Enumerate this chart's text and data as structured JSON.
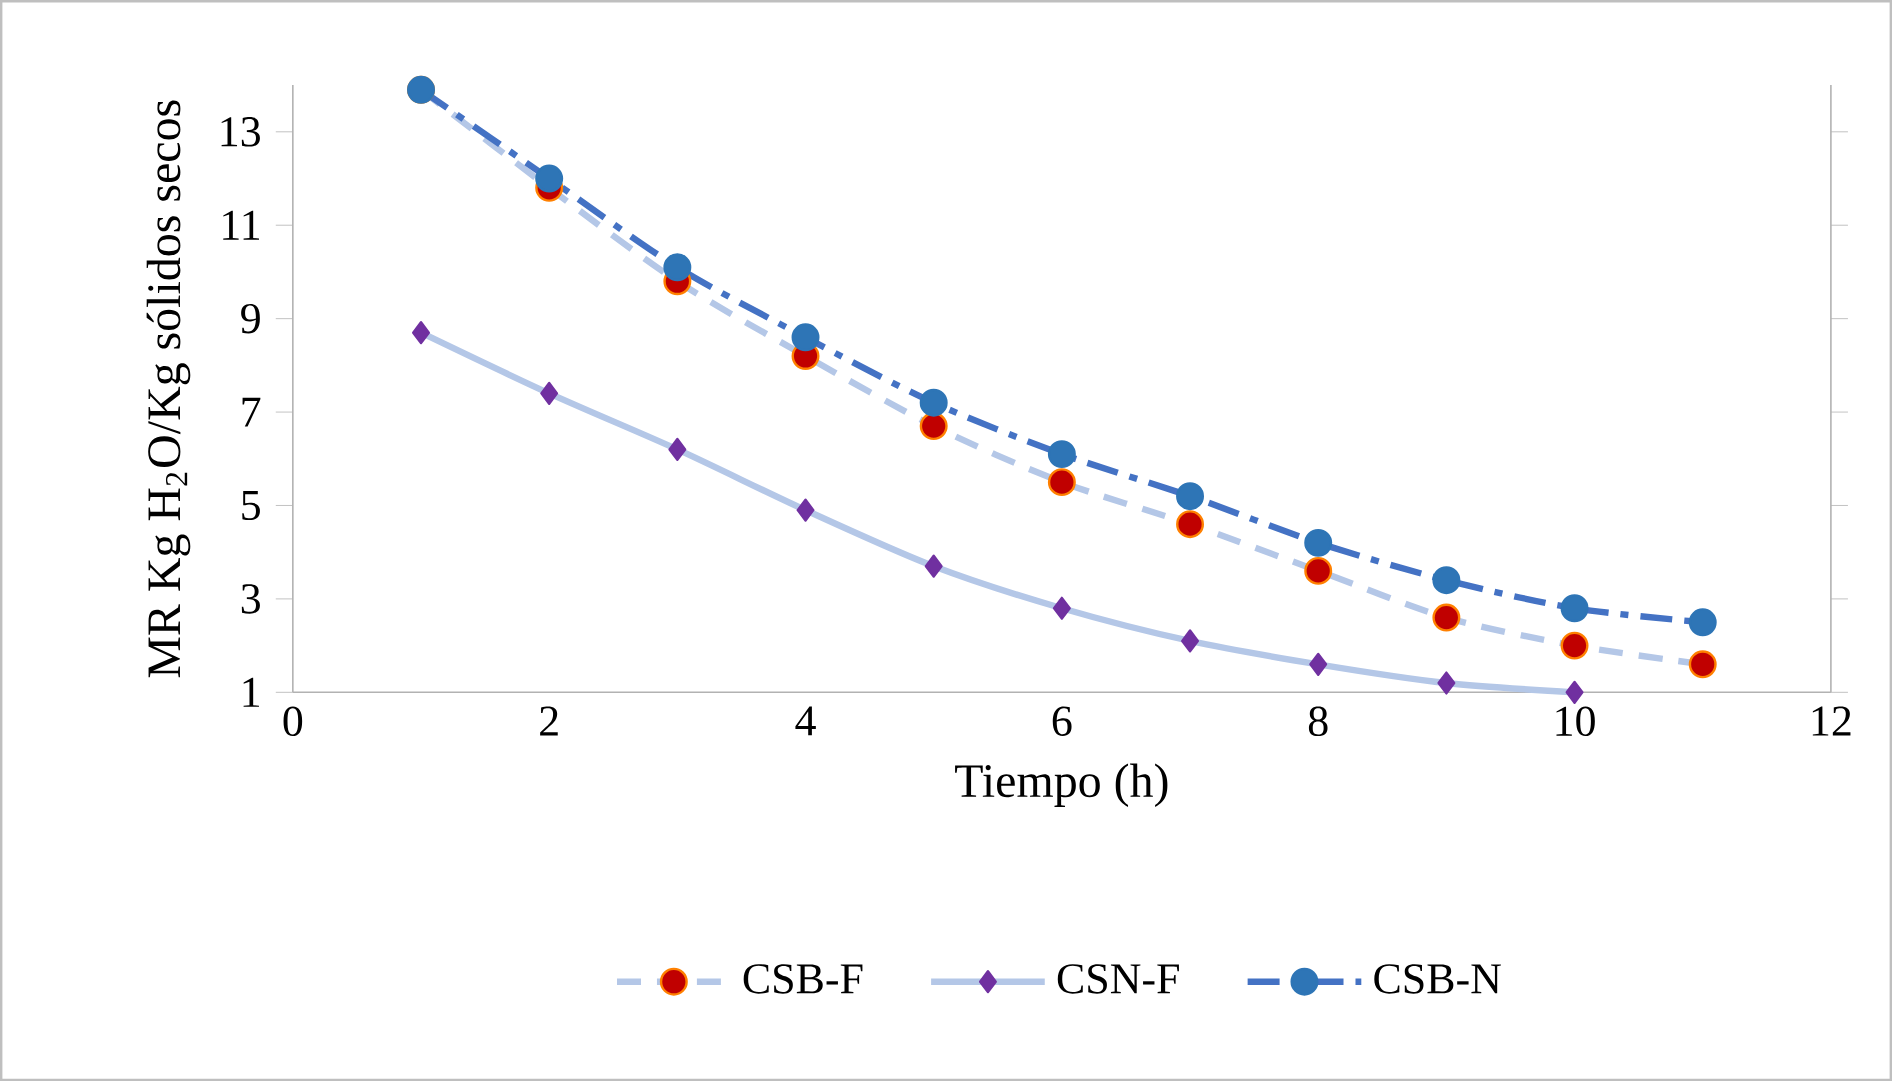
{
  "chart_data": {
    "type": "line",
    "xlabel": "Tiempo (h)",
    "ylabel": "MR Kg H$_{2}$O/Kg sólidos secos",
    "xlim": [
      0,
      12
    ],
    "xticks": [
      0,
      2,
      4,
      6,
      8,
      10,
      12
    ],
    "ylim": [
      1,
      14
    ],
    "yticks": [
      1,
      3,
      5,
      7,
      9,
      11,
      13
    ],
    "legend": "bottom",
    "grid": false,
    "series": [
      {
        "name": "CSB-F",
        "color": "#b4c7e7",
        "marker": "circle",
        "line_style": "dashed",
        "x": [
          1,
          2,
          3,
          4,
          5,
          6,
          7,
          8,
          9,
          10,
          11
        ],
        "values": [
          13.9,
          11.8,
          9.8,
          8.2,
          6.7,
          5.5,
          4.6,
          3.6,
          2.6,
          2.0,
          1.6
        ]
      },
      {
        "name": "CSN-F",
        "color": "#b4c7e7",
        "marker": "diamond",
        "line_style": "solid",
        "x": [
          1,
          2,
          3,
          4,
          5,
          6,
          7,
          8,
          9,
          10
        ],
        "values": [
          8.7,
          7.4,
          6.2,
          4.9,
          3.7,
          2.8,
          2.1,
          1.6,
          1.2,
          1.0
        ]
      },
      {
        "name": "CSB-N",
        "color": "#4472c4",
        "marker": "circle",
        "line_style": "dashdotted",
        "x": [
          1,
          2,
          3,
          4,
          5,
          6,
          7,
          8,
          9,
          10,
          11
        ],
        "values": [
          13.9,
          12.0,
          10.1,
          8.6,
          7.2,
          6.1,
          5.2,
          4.2,
          3.4,
          2.8,
          2.5
        ]
      }
    ]
  }
}
